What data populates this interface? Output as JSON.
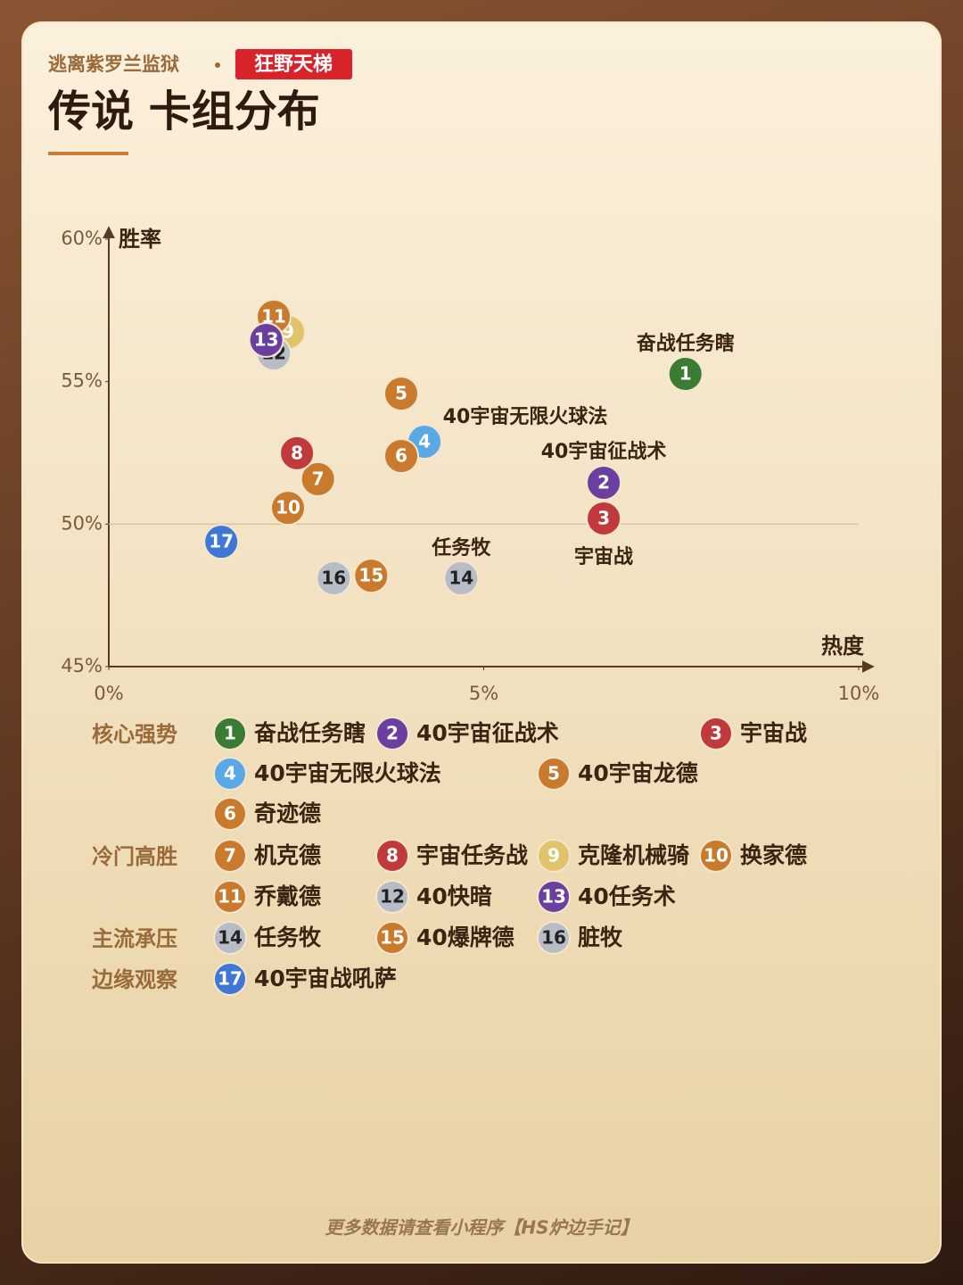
{
  "header": {
    "subtitle": "逃离紫罗兰监狱",
    "tag": "狂野天梯",
    "title": "传说 卡组分布"
  },
  "chart_data": {
    "type": "scatter",
    "x_label": "热度",
    "y_label": "胜率",
    "xlim": [
      0,
      10
    ],
    "ylim": [
      45,
      60
    ],
    "xticks": [
      {
        "value": 0,
        "label": "0%"
      },
      {
        "value": 5,
        "label": "5%"
      },
      {
        "value": 10,
        "label": "10%"
      }
    ],
    "yticks": [
      {
        "value": 45,
        "label": "45%"
      },
      {
        "value": 50,
        "label": "50%"
      },
      {
        "value": 55,
        "label": "55%"
      },
      {
        "value": 60,
        "label": "60%"
      }
    ],
    "reference_line": 50,
    "groups": [
      {
        "name": "核心强势",
        "decks": [
          {
            "label": "1",
            "name": "奋战任务瞎",
            "color": "#3a7d32",
            "x": 7.69,
            "y": 55.27
          },
          {
            "label": "2",
            "name": "40宇宙征战术",
            "color": "#6b3fa0",
            "x": 6.6,
            "y": 51.45
          },
          {
            "label": "3",
            "name": "宇宙战",
            "color": "#c0393b",
            "x": 6.6,
            "y": 50.2
          },
          {
            "label": "4",
            "name": "40宇宙无限火球法",
            "color": "#5aa9e6",
            "x": 4.21,
            "y": 52.89
          },
          {
            "label": "5",
            "name": "40宇宙龙德",
            "color": "#c97a2c",
            "x": 3.9,
            "y": 54.58
          },
          {
            "label": "6",
            "name": "奇迹德",
            "color": "#c97a2c",
            "x": 3.9,
            "y": 52.39
          }
        ]
      },
      {
        "name": "冷门高胜",
        "decks": [
          {
            "label": "7",
            "name": "机克德",
            "color": "#c97a2c",
            "x": 2.79,
            "y": 51.58
          },
          {
            "label": "8",
            "name": "宇宙任务战",
            "color": "#c0393b",
            "x": 2.51,
            "y": 52.49
          },
          {
            "label": "9",
            "name": "克隆机械骑",
            "color": "#e0c36a",
            "x": 2.39,
            "y": 56.74
          },
          {
            "label": "10",
            "name": "换家德",
            "color": "#c97a2c",
            "x": 2.39,
            "y": 50.57
          },
          {
            "label": "11",
            "name": "乔戴德",
            "color": "#c97a2c",
            "x": 2.2,
            "y": 57.28
          },
          {
            "label": "12",
            "name": "40快暗",
            "color": "#b7bcc6",
            "x": 2.2,
            "y": 55.99
          },
          {
            "label": "13",
            "name": "40任务术",
            "color": "#6b3fa0",
            "x": 2.1,
            "y": 56.46
          }
        ]
      },
      {
        "name": "主流承压",
        "decks": [
          {
            "label": "14",
            "name": "任务牧",
            "color": "#b7bcc6",
            "x": 4.7,
            "y": 48.1
          },
          {
            "label": "15",
            "name": "40爆牌德",
            "color": "#c97a2c",
            "x": 3.5,
            "y": 48.19
          },
          {
            "label": "16",
            "name": "脏牧",
            "color": "#b7bcc6",
            "x": 3.0,
            "y": 48.1
          }
        ]
      },
      {
        "name": "边缘观察",
        "decks": [
          {
            "label": "17",
            "name": "40宇宙战吼萨",
            "color": "#3f78d4",
            "x": 1.5,
            "y": 49.38
          }
        ]
      }
    ]
  },
  "footer": "更多数据请查看小程序【HS炉边手记】"
}
